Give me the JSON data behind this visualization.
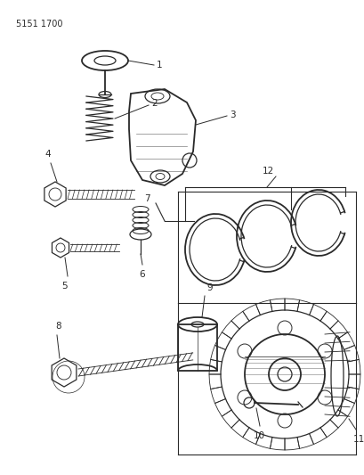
{
  "title_code": "5151 1700",
  "bg_color": "#ffffff",
  "line_color": "#2a2a2a",
  "fig_width": 4.1,
  "fig_height": 5.33,
  "dpi": 100
}
